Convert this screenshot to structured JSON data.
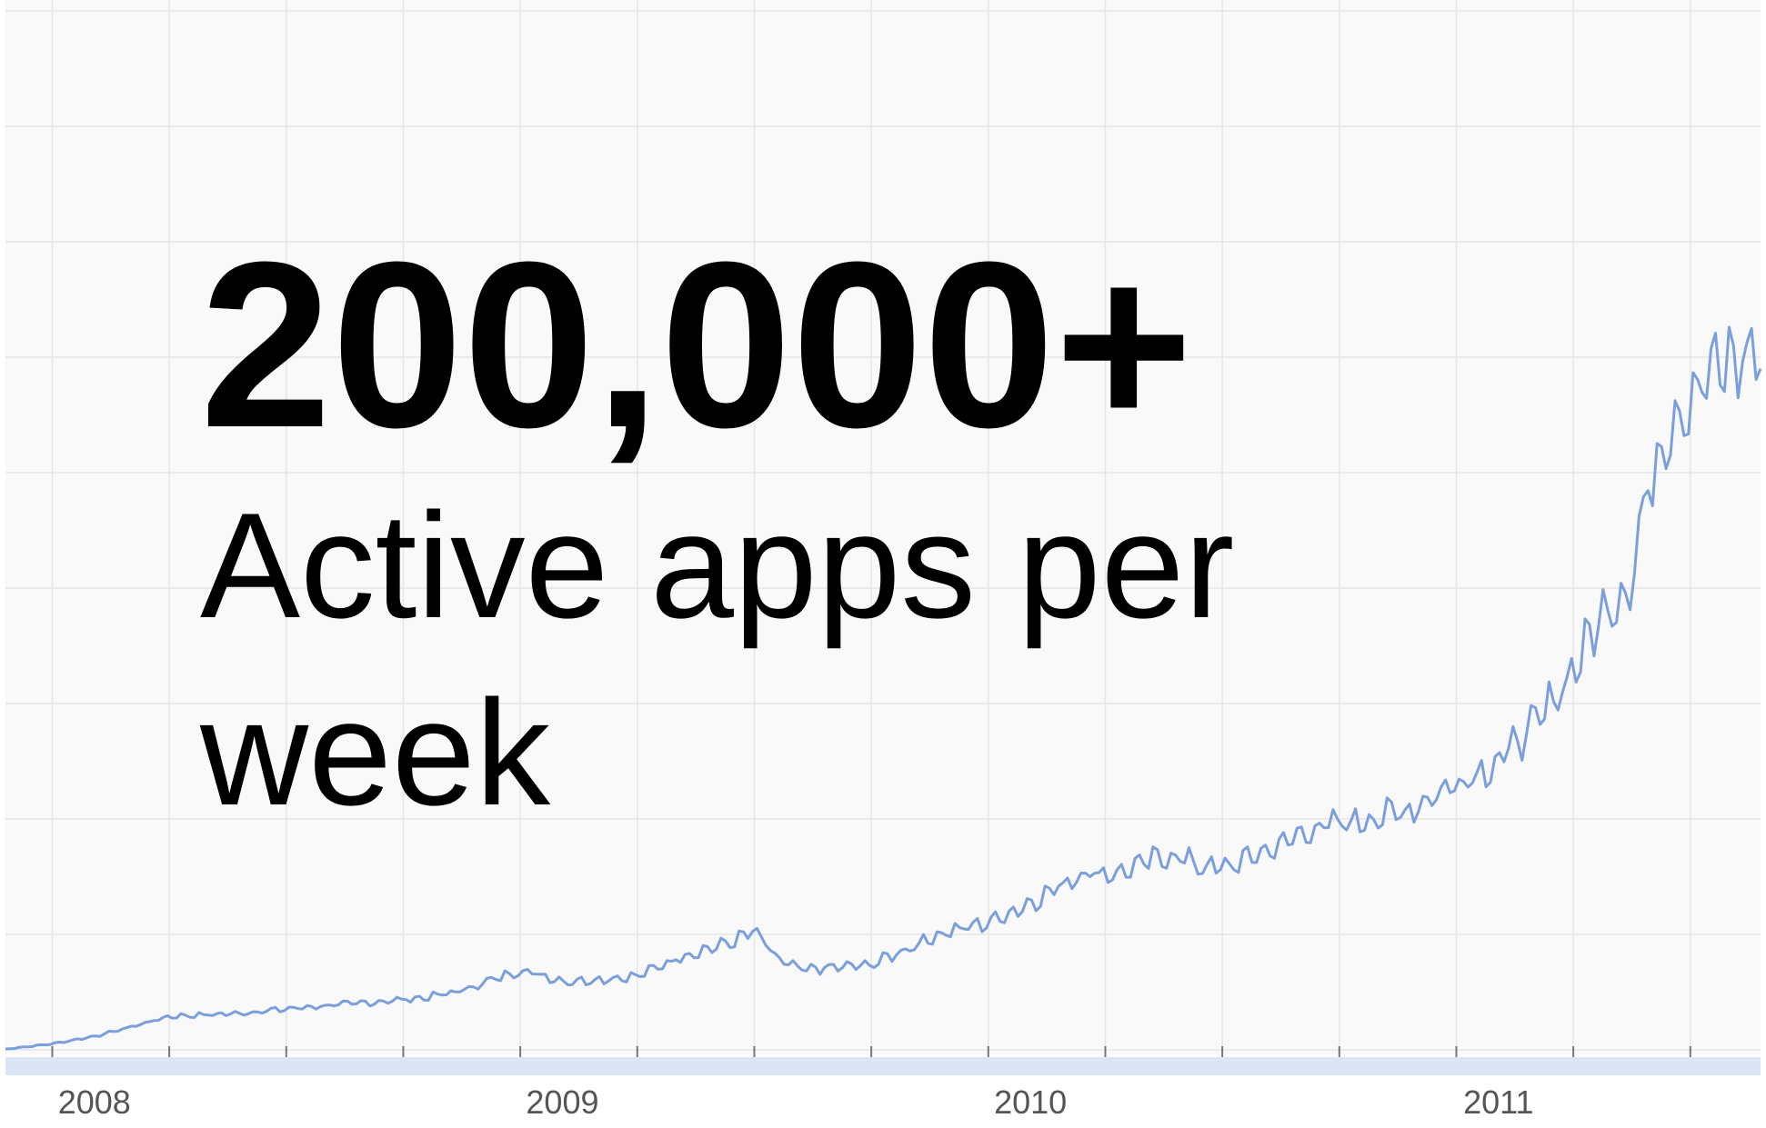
{
  "overlay": {
    "headline": "200,000+",
    "subline_line1": "Active apps per",
    "subline_line2": "week"
  },
  "colors": {
    "background": "#f9f9f9",
    "grid": "#e6e6e6",
    "line": "#7b9fdc",
    "baseline_band": "#dbe5f5",
    "tick_label": "#555555"
  },
  "chart_data": {
    "type": "line",
    "title": "",
    "xlabel": "",
    "ylabel": "",
    "x_tick_labels": [
      "2008",
      "2009",
      "2010",
      "2011"
    ],
    "xlim": [
      2007.9,
      2011.65
    ],
    "ylim": [
      0,
      100
    ],
    "grid": true,
    "legend": "none",
    "series": [
      {
        "anchors": [
          [
            2007.9,
            0.5
          ],
          [
            2008.0,
            1
          ],
          [
            2008.1,
            1.8
          ],
          [
            2008.2,
            3
          ],
          [
            2008.25,
            3.6
          ],
          [
            2008.4,
            3.9
          ],
          [
            2008.55,
            4.5
          ],
          [
            2008.7,
            5
          ],
          [
            2008.8,
            5.4
          ],
          [
            2008.87,
            6
          ],
          [
            2008.95,
            7.2
          ],
          [
            2009.0,
            8
          ],
          [
            2009.1,
            6.9
          ],
          [
            2009.25,
            7.4
          ],
          [
            2009.35,
            9.4
          ],
          [
            2009.45,
            10.6
          ],
          [
            2009.5,
            11.7
          ],
          [
            2009.55,
            9
          ],
          [
            2009.6,
            8
          ],
          [
            2009.75,
            8.5
          ],
          [
            2009.9,
            11.5
          ],
          [
            2010.0,
            12.5
          ],
          [
            2010.1,
            14.6
          ],
          [
            2010.2,
            17.2
          ],
          [
            2010.28,
            17.2
          ],
          [
            2010.35,
            18.4
          ],
          [
            2010.4,
            18.9
          ],
          [
            2010.45,
            17.9
          ],
          [
            2010.5,
            17.6
          ],
          [
            2010.6,
            19.4
          ],
          [
            2010.7,
            21.5
          ],
          [
            2010.8,
            22.2
          ],
          [
            2010.9,
            23.2
          ],
          [
            2011.0,
            25.8
          ],
          [
            2011.08,
            27.5
          ],
          [
            2011.17,
            31.3
          ],
          [
            2011.25,
            36.5
          ],
          [
            2011.32,
            42.5
          ],
          [
            2011.37,
            44.3
          ],
          [
            2011.41,
            53.8
          ],
          [
            2011.45,
            59.5
          ],
          [
            2011.5,
            62.5
          ],
          [
            2011.55,
            64.8
          ],
          [
            2011.6,
            65.8
          ],
          [
            2011.65,
            67
          ]
        ]
      }
    ]
  }
}
